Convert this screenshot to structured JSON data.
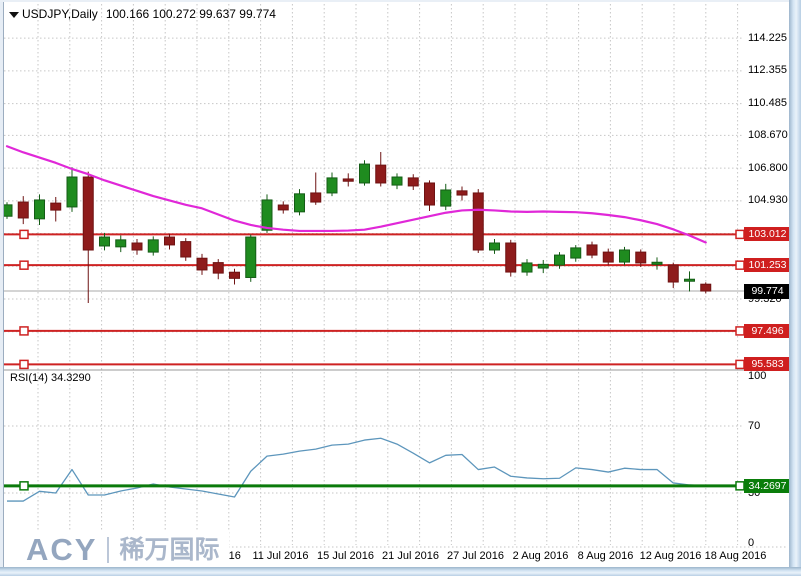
{
  "header": {
    "symbol": "USDJPY,Daily",
    "values": "100.166 100.272 99.637 99.774"
  },
  "logo": {
    "brand": "ACY",
    "cn": "稀万国际"
  },
  "colors": {
    "bull": "#1f8b1f",
    "bull_stroke": "#145c16",
    "bear": "#8e1b1b",
    "bear_stroke": "#6e1212",
    "ma_line": "#e028d8",
    "level_red": "#ce2222",
    "current_gray": "#a8a8a8",
    "rsi_line": "#5d96bc",
    "rsi_trigger_green": "#0b7a0b",
    "grid": "#c6c6c6",
    "badge_red_bg": "#cf1f1f",
    "badge_black_bg": "#000000",
    "badge_green_bg": "#0a7d0a",
    "frame_blue": "#b7cee4"
  },
  "chart_data": [
    {
      "type": "candlestick",
      "title": "USDJPY Daily",
      "ylabel": "price",
      "ylim": [
        94.5,
        116.0
      ],
      "grid": true,
      "y_ticks": [
        {
          "label": "114.225",
          "price": 114.225
        },
        {
          "label": "112.355",
          "price": 112.355
        },
        {
          "label": "110.485",
          "price": 110.485
        },
        {
          "label": "108.670",
          "price": 108.67
        },
        {
          "label": "106.800",
          "price": 106.8
        },
        {
          "label": "104.930",
          "price": 104.93
        },
        {
          "label": "99.320",
          "price": 99.32
        }
      ],
      "gridline_prices": [
        114.225,
        112.355,
        110.485,
        108.67,
        106.8,
        104.93,
        103.06,
        101.19,
        99.32,
        97.45,
        95.58
      ],
      "x_ticks": [
        {
          "label": "5 Jul 2016"
        },
        {
          "label": "11 Jul 2016"
        },
        {
          "label": "15 Jul 2016"
        },
        {
          "label": "21 Jul 2016"
        },
        {
          "label": "27 Jul 2016"
        },
        {
          "label": "2 Aug 2016"
        },
        {
          "label": "8 Aug 2016"
        },
        {
          "label": "12 Aug 2016"
        },
        {
          "label": "18 Aug 2016"
        }
      ],
      "levels": [
        {
          "label": "103.012",
          "price": 103.012
        },
        {
          "label": "101.253",
          "price": 101.253
        },
        {
          "label": "97.496",
          "price": 97.496
        },
        {
          "label": "95.583",
          "price": 95.583
        }
      ],
      "current": {
        "label": "99.774",
        "price": 99.774
      },
      "candles": [
        [
          104.05,
          104.85,
          103.9,
          104.7
        ],
        [
          104.86,
          105.2,
          103.6,
          103.95
        ],
        [
          103.9,
          105.3,
          103.55,
          104.98
        ],
        [
          104.8,
          105.15,
          103.75,
          104.4
        ],
        [
          104.58,
          106.85,
          104.3,
          106.29
        ],
        [
          106.29,
          106.6,
          99.09,
          102.12
        ],
        [
          102.35,
          103.1,
          102.1,
          102.86
        ],
        [
          102.3,
          102.95,
          102.0,
          102.7
        ],
        [
          102.52,
          102.75,
          101.85,
          102.12
        ],
        [
          102.0,
          102.9,
          101.8,
          102.7
        ],
        [
          102.86,
          103.05,
          102.15,
          102.41
        ],
        [
          102.6,
          102.8,
          101.5,
          101.72
        ],
        [
          101.65,
          101.9,
          100.7,
          100.98
        ],
        [
          101.4,
          101.6,
          100.45,
          100.8
        ],
        [
          100.85,
          101.05,
          100.15,
          100.5
        ],
        [
          100.55,
          103.0,
          100.3,
          102.86
        ],
        [
          103.25,
          105.3,
          103.1,
          104.98
        ],
        [
          104.69,
          104.9,
          104.2,
          104.41
        ],
        [
          104.3,
          105.6,
          104.1,
          105.33
        ],
        [
          105.38,
          106.55,
          104.7,
          104.86
        ],
        [
          105.38,
          106.55,
          105.2,
          106.24
        ],
        [
          106.18,
          106.5,
          105.75,
          106.05
        ],
        [
          105.95,
          107.25,
          105.8,
          107.03
        ],
        [
          106.97,
          107.72,
          105.75,
          105.95
        ],
        [
          105.83,
          106.5,
          105.6,
          106.29
        ],
        [
          106.24,
          106.45,
          105.55,
          105.78
        ],
        [
          105.95,
          106.1,
          104.35,
          104.69
        ],
        [
          104.63,
          105.9,
          104.4,
          105.55
        ],
        [
          105.5,
          105.75,
          104.95,
          105.26
        ],
        [
          105.38,
          105.6,
          101.95,
          102.12
        ],
        [
          102.12,
          102.75,
          101.9,
          102.52
        ],
        [
          102.52,
          102.7,
          100.6,
          100.86
        ],
        [
          100.86,
          101.6,
          100.65,
          101.38
        ],
        [
          101.09,
          101.55,
          100.8,
          101.3
        ],
        [
          101.26,
          102.0,
          101.05,
          101.83
        ],
        [
          101.66,
          102.4,
          101.45,
          102.24
        ],
        [
          102.41,
          102.6,
          101.65,
          101.83
        ],
        [
          102.0,
          102.2,
          101.25,
          101.43
        ],
        [
          101.43,
          102.3,
          101.25,
          102.12
        ],
        [
          102.0,
          102.15,
          101.15,
          101.38
        ],
        [
          101.3,
          101.7,
          101.0,
          101.42
        ],
        [
          101.26,
          101.4,
          99.95,
          100.29
        ],
        [
          100.35,
          100.9,
          99.75,
          100.45
        ],
        [
          100.166,
          100.272,
          99.637,
          99.774
        ]
      ],
      "ma_magenta": [
        108.05,
        107.7,
        107.4,
        107.1,
        106.75,
        106.45,
        106.1,
        105.8,
        105.5,
        105.2,
        104.95,
        104.7,
        104.5,
        104.15,
        103.8,
        103.55,
        103.38,
        103.28,
        103.21,
        103.21,
        103.21,
        103.23,
        103.28,
        103.45,
        103.65,
        103.85,
        104.05,
        104.25,
        104.38,
        104.42,
        104.38,
        104.32,
        104.3,
        104.32,
        104.3,
        104.28,
        104.22,
        104.12,
        104.0,
        103.82,
        103.6,
        103.3,
        102.95,
        102.55
      ]
    },
    {
      "type": "line",
      "name": "RSI(14)",
      "indicator_label": "RSI(14) 34.3290",
      "ylim": [
        0,
        100
      ],
      "y_ticks": [
        {
          "label": "100",
          "value": 100
        },
        {
          "label": "70",
          "value": 70
        },
        {
          "label": "30",
          "value": 30
        },
        {
          "label": "0",
          "value": 0
        }
      ],
      "level_lines": [
        70,
        30
      ],
      "trigger": {
        "label": "34.2697",
        "value": 34.2697
      },
      "values": [
        25.2,
        25.2,
        31,
        30,
        44,
        28.8,
        28.8,
        31.2,
        33,
        35.4,
        33.6,
        32.4,
        31.2,
        29.4,
        27.6,
        43,
        52,
        53.2,
        55,
        56.2,
        58.6,
        59.2,
        61.6,
        62.7,
        59.2,
        53.8,
        48,
        52.5,
        53,
        44,
        45.5,
        40,
        39,
        38.5,
        38.8,
        45,
        44,
        42.5,
        44.8,
        44,
        44,
        36,
        34.8,
        34.33
      ]
    }
  ]
}
